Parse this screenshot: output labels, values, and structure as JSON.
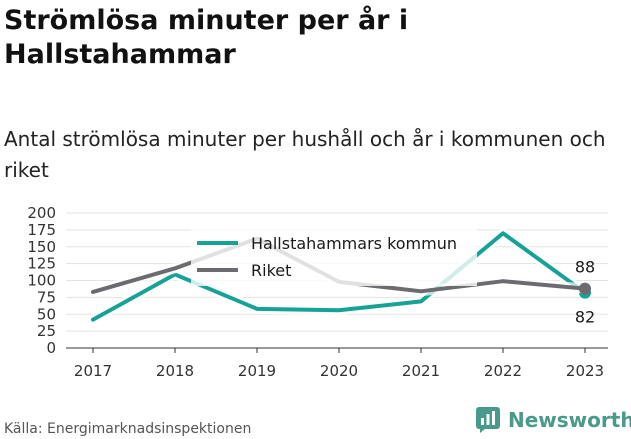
{
  "title": "Strömlösa minuter per år i Hallstahammar",
  "subtitle": "Antal strömlösa minuter per hushåll och år i kommunen och riket",
  "source": "Källa: Energimarknadsinspektionen",
  "brand": "Newsworthy",
  "colors": {
    "kommun": "#16a396",
    "riket": "#6b6b70",
    "grid": "#e3e3e3",
    "brand": "#4a9a8c"
  },
  "chart_data": {
    "type": "line",
    "x": [
      "2017",
      "2018",
      "2019",
      "2020",
      "2021",
      "2022",
      "2023"
    ],
    "ylim": [
      0,
      200
    ],
    "yticks": [
      0,
      25,
      50,
      75,
      100,
      125,
      150,
      175,
      200
    ],
    "grid": true,
    "legend_position": "top-center",
    "series": [
      {
        "name": "Hallstahammars kommun",
        "key": "kommun",
        "values": [
          42,
          109,
          58,
          56,
          69,
          170,
          82
        ],
        "end_label": "82"
      },
      {
        "name": "Riket",
        "key": "riket",
        "values": [
          83,
          118,
          162,
          98,
          84,
          99,
          88
        ],
        "end_label": "88"
      }
    ]
  }
}
